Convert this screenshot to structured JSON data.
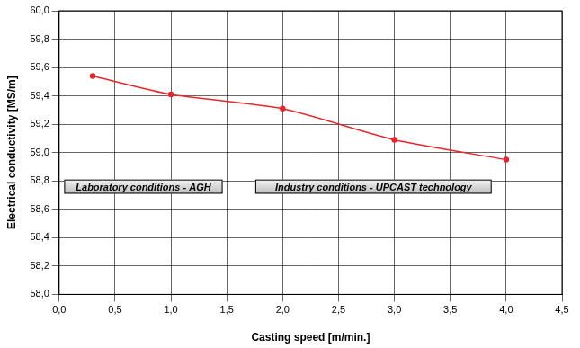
{
  "chart_data": {
    "type": "line",
    "x_label": "Casting speed [m/min.]",
    "y_label": "Electrical conductivity [MS/m]",
    "annotations": [
      "Laboratory conditions - AGH",
      "Industry conditions - UPCAST technology"
    ],
    "x": [
      0.3,
      1.0,
      2.0,
      3.0,
      4.0
    ],
    "values": [
      59.54,
      59.41,
      59.31,
      59.09,
      58.95
    ],
    "color": "#e8262b",
    "marker": "circle",
    "xlim": [
      0,
      4.5
    ],
    "xticks": [
      {
        "value": 0,
        "label": "0,0"
      },
      {
        "value": 0.5,
        "label": "0,5"
      },
      {
        "value": 1,
        "label": "1,0"
      },
      {
        "value": 1.5,
        "label": "1,5"
      },
      {
        "value": 2,
        "label": "2,0"
      },
      {
        "value": 2.5,
        "label": "2,5"
      },
      {
        "value": 3,
        "label": "3,0"
      },
      {
        "value": 3.5,
        "label": "3,5"
      },
      {
        "value": 4,
        "label": "4,0"
      },
      {
        "value": 4.5,
        "label": "4,5"
      }
    ],
    "ylim": [
      58,
      60
    ],
    "yticks": [
      {
        "value": 58,
        "label": "58,0"
      },
      {
        "value": 58.2,
        "label": "58,2"
      },
      {
        "value": 58.4,
        "label": "58,4"
      },
      {
        "value": 58.6,
        "label": "58,6"
      },
      {
        "value": 58.8,
        "label": "58,8"
      },
      {
        "value": 59,
        "label": "59,0"
      },
      {
        "value": 59.2,
        "label": "59,2"
      },
      {
        "value": 59.4,
        "label": "59,4"
      },
      {
        "value": 59.6,
        "label": "59,6"
      },
      {
        "value": 59.8,
        "label": "59,8"
      },
      {
        "value": 60,
        "label": "60,0"
      }
    ],
    "grid": true
  }
}
